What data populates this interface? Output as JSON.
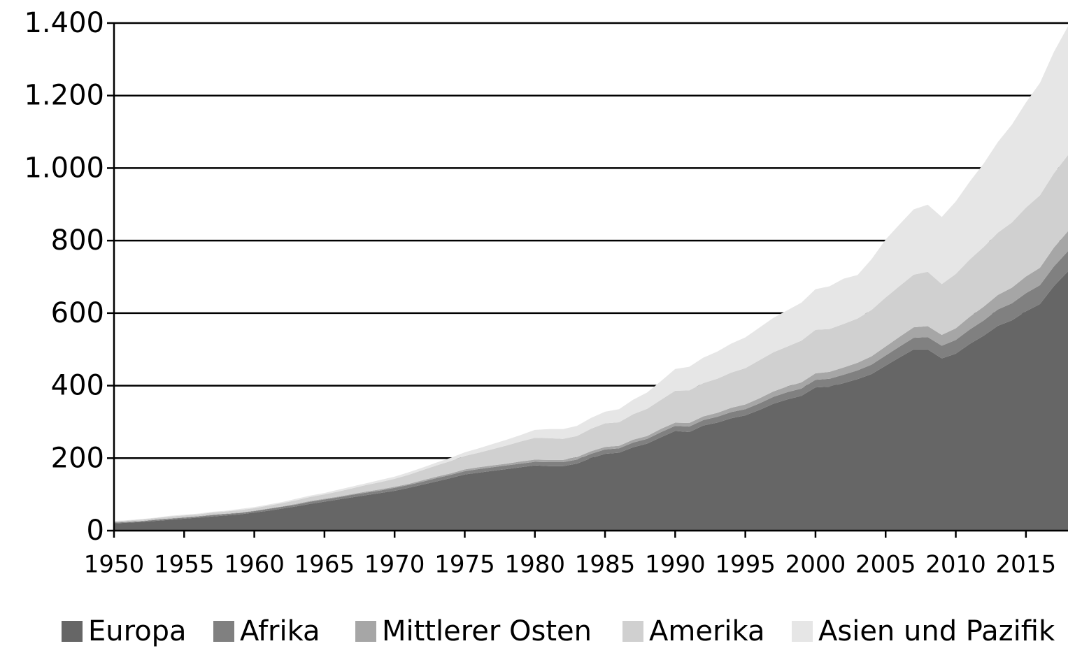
{
  "chart_data": {
    "type": "stacked-area",
    "x": [
      1950,
      1951,
      1952,
      1953,
      1954,
      1955,
      1956,
      1957,
      1958,
      1959,
      1960,
      1961,
      1962,
      1963,
      1964,
      1965,
      1966,
      1967,
      1968,
      1969,
      1970,
      1971,
      1972,
      1973,
      1974,
      1975,
      1976,
      1977,
      1978,
      1979,
      1980,
      1981,
      1982,
      1983,
      1984,
      1985,
      1986,
      1987,
      1988,
      1989,
      1990,
      1991,
      1992,
      1993,
      1994,
      1995,
      1996,
      1997,
      1998,
      1999,
      2000,
      2001,
      2002,
      2003,
      2004,
      2005,
      2006,
      2007,
      2008,
      2009,
      2010,
      2011,
      2012,
      2013,
      2014,
      2015,
      2016,
      2017,
      2018
    ],
    "series": [
      {
        "name": "Europa",
        "color": "#666666",
        "values": [
          20,
          22,
          24,
          27,
          30,
          33,
          36,
          39,
          42,
          45,
          50,
          55,
          61,
          67,
          74,
          80,
          86,
          92,
          98,
          104,
          110,
          118,
          127,
          136,
          145,
          155,
          160,
          165,
          170,
          175,
          180,
          178,
          178,
          185,
          200,
          212,
          215,
          230,
          240,
          258,
          275,
          272,
          290,
          298,
          310,
          318,
          333,
          350,
          362,
          372,
          395,
          397,
          407,
          418,
          432,
          455,
          478,
          500,
          500,
          475,
          488,
          515,
          538,
          565,
          580,
          605,
          625,
          675,
          715
        ]
      },
      {
        "name": "Afrika",
        "color": "#808080",
        "values": [
          2,
          2,
          2,
          3,
          3,
          3,
          3,
          4,
          4,
          4,
          4,
          5,
          5,
          5,
          6,
          6,
          6,
          7,
          7,
          7,
          8,
          8,
          8,
          9,
          9,
          9,
          10,
          10,
          10,
          10,
          10,
          11,
          11,
          11,
          12,
          12,
          12,
          13,
          13,
          14,
          14,
          15,
          15,
          16,
          17,
          17,
          18,
          19,
          20,
          20,
          21,
          22,
          23,
          24,
          26,
          28,
          30,
          32,
          34,
          35,
          38,
          40,
          42,
          45,
          47,
          50,
          52,
          54,
          56
        ]
      },
      {
        "name": "Mittlerer Osten",
        "color": "#a6a6a6",
        "values": [
          1,
          1,
          1,
          1,
          1,
          1,
          1,
          1,
          1,
          1,
          1,
          1,
          1,
          2,
          2,
          2,
          2,
          2,
          3,
          3,
          3,
          3,
          4,
          4,
          4,
          5,
          5,
          5,
          5,
          6,
          6,
          6,
          6,
          7,
          7,
          7,
          7,
          8,
          8,
          9,
          9,
          10,
          10,
          11,
          12,
          13,
          14,
          15,
          16,
          17,
          18,
          19,
          20,
          21,
          23,
          25,
          27,
          29,
          30,
          30,
          32,
          35,
          38,
          40,
          43,
          46,
          48,
          52,
          55
        ]
      },
      {
        "name": "Amerika",
        "color": "#d0d0d0",
        "values": [
          3,
          3,
          4,
          4,
          5,
          5,
          5,
          6,
          6,
          7,
          7,
          8,
          9,
          10,
          11,
          12,
          14,
          16,
          18,
          20,
          22,
          25,
          28,
          31,
          34,
          37,
          40,
          45,
          50,
          55,
          60,
          60,
          58,
          58,
          62,
          65,
          65,
          70,
          75,
          80,
          88,
          90,
          92,
          94,
          97,
          100,
          105,
          108,
          110,
          115,
          120,
          118,
          120,
          122,
          128,
          135,
          140,
          145,
          150,
          140,
          150,
          158,
          165,
          172,
          180,
          190,
          200,
          205,
          210
        ]
      },
      {
        "name": "Asien und Pazifik",
        "color": "#e6e6e6",
        "values": [
          1,
          1,
          1,
          1,
          2,
          2,
          2,
          2,
          2,
          3,
          3,
          3,
          3,
          4,
          4,
          4,
          5,
          5,
          5,
          6,
          6,
          7,
          7,
          8,
          9,
          10,
          12,
          14,
          16,
          18,
          22,
          25,
          27,
          28,
          30,
          32,
          36,
          40,
          45,
          52,
          60,
          65,
          70,
          75,
          80,
          85,
          90,
          95,
          100,
          105,
          112,
          118,
          125,
          120,
          140,
          160,
          170,
          180,
          185,
          185,
          200,
          215,
          230,
          250,
          270,
          290,
          310,
          335,
          355
        ]
      }
    ],
    "xlim": [
      1950,
      2018
    ],
    "xticks": [
      1950,
      1955,
      1960,
      1965,
      1970,
      1975,
      1980,
      1985,
      1990,
      1995,
      2000,
      2005,
      2010,
      2015
    ],
    "ylim": [
      0,
      1400
    ],
    "yticks": [
      0,
      200,
      400,
      600,
      800,
      {
        "value": 1000,
        "label": "1.000"
      },
      {
        "value": 1200,
        "label": "1.200"
      },
      {
        "value": 1400,
        "label": "1.400"
      }
    ],
    "grid": true,
    "legend": "bottom"
  }
}
